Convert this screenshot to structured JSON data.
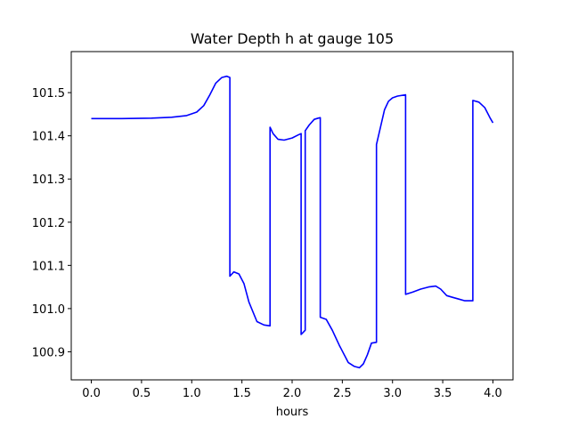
{
  "chart_data": {
    "type": "line",
    "title": "Water Depth h at gauge 105",
    "xlabel": "hours",
    "ylabel": "",
    "xlim": [
      -0.2,
      4.2
    ],
    "ylim": [
      100.835,
      101.595
    ],
    "xticks": [
      0.0,
      0.5,
      1.0,
      1.5,
      2.0,
      2.5,
      3.0,
      3.5,
      4.0
    ],
    "xtick_labels": [
      "0.0",
      "0.5",
      "1.0",
      "1.5",
      "2.0",
      "2.5",
      "3.0",
      "3.5",
      "4.0"
    ],
    "yticks": [
      100.9,
      101.0,
      101.1,
      101.2,
      101.3,
      101.4,
      101.5
    ],
    "ytick_labels": [
      "100.9",
      "101.0",
      "101.1",
      "101.2",
      "101.3",
      "101.4",
      "101.5"
    ],
    "grid": false,
    "legend": "none",
    "series": [
      {
        "color": "#0000ff",
        "x": [
          0.0,
          0.3,
          0.6,
          0.8,
          0.95,
          1.05,
          1.12,
          1.18,
          1.24,
          1.3,
          1.35,
          1.38,
          1.38,
          1.42,
          1.47,
          1.52,
          1.57,
          1.65,
          1.72,
          1.78,
          1.78,
          1.81,
          1.86,
          1.92,
          2.0,
          2.06,
          2.09,
          2.09,
          2.13,
          2.13,
          2.17,
          2.22,
          2.26,
          2.28,
          2.28,
          2.34,
          2.4,
          2.47,
          2.56,
          2.62,
          2.67,
          2.71,
          2.75,
          2.79,
          2.84,
          2.84,
          2.88,
          2.92,
          2.96,
          3.0,
          3.05,
          3.13,
          3.13,
          3.2,
          3.28,
          3.36,
          3.43,
          3.48,
          3.54,
          3.6,
          3.66,
          3.72,
          3.8,
          3.8,
          3.86,
          3.92,
          3.97,
          4.0
        ],
        "y": [
          101.44,
          101.44,
          101.441,
          101.443,
          101.447,
          101.455,
          101.47,
          101.495,
          101.522,
          101.535,
          101.538,
          101.535,
          101.075,
          101.085,
          101.08,
          101.058,
          101.015,
          100.97,
          100.962,
          100.96,
          101.42,
          101.405,
          101.392,
          101.39,
          101.395,
          101.402,
          101.405,
          100.94,
          100.95,
          101.412,
          101.425,
          101.438,
          101.441,
          101.442,
          100.98,
          100.975,
          100.95,
          100.915,
          100.875,
          100.866,
          100.863,
          100.872,
          100.893,
          100.92,
          100.922,
          101.38,
          101.42,
          101.46,
          101.48,
          101.488,
          101.492,
          101.495,
          101.033,
          101.038,
          101.045,
          101.05,
          101.052,
          101.045,
          101.03,
          101.026,
          101.022,
          101.018,
          101.018,
          101.482,
          101.478,
          101.465,
          101.442,
          101.43
        ]
      }
    ]
  }
}
